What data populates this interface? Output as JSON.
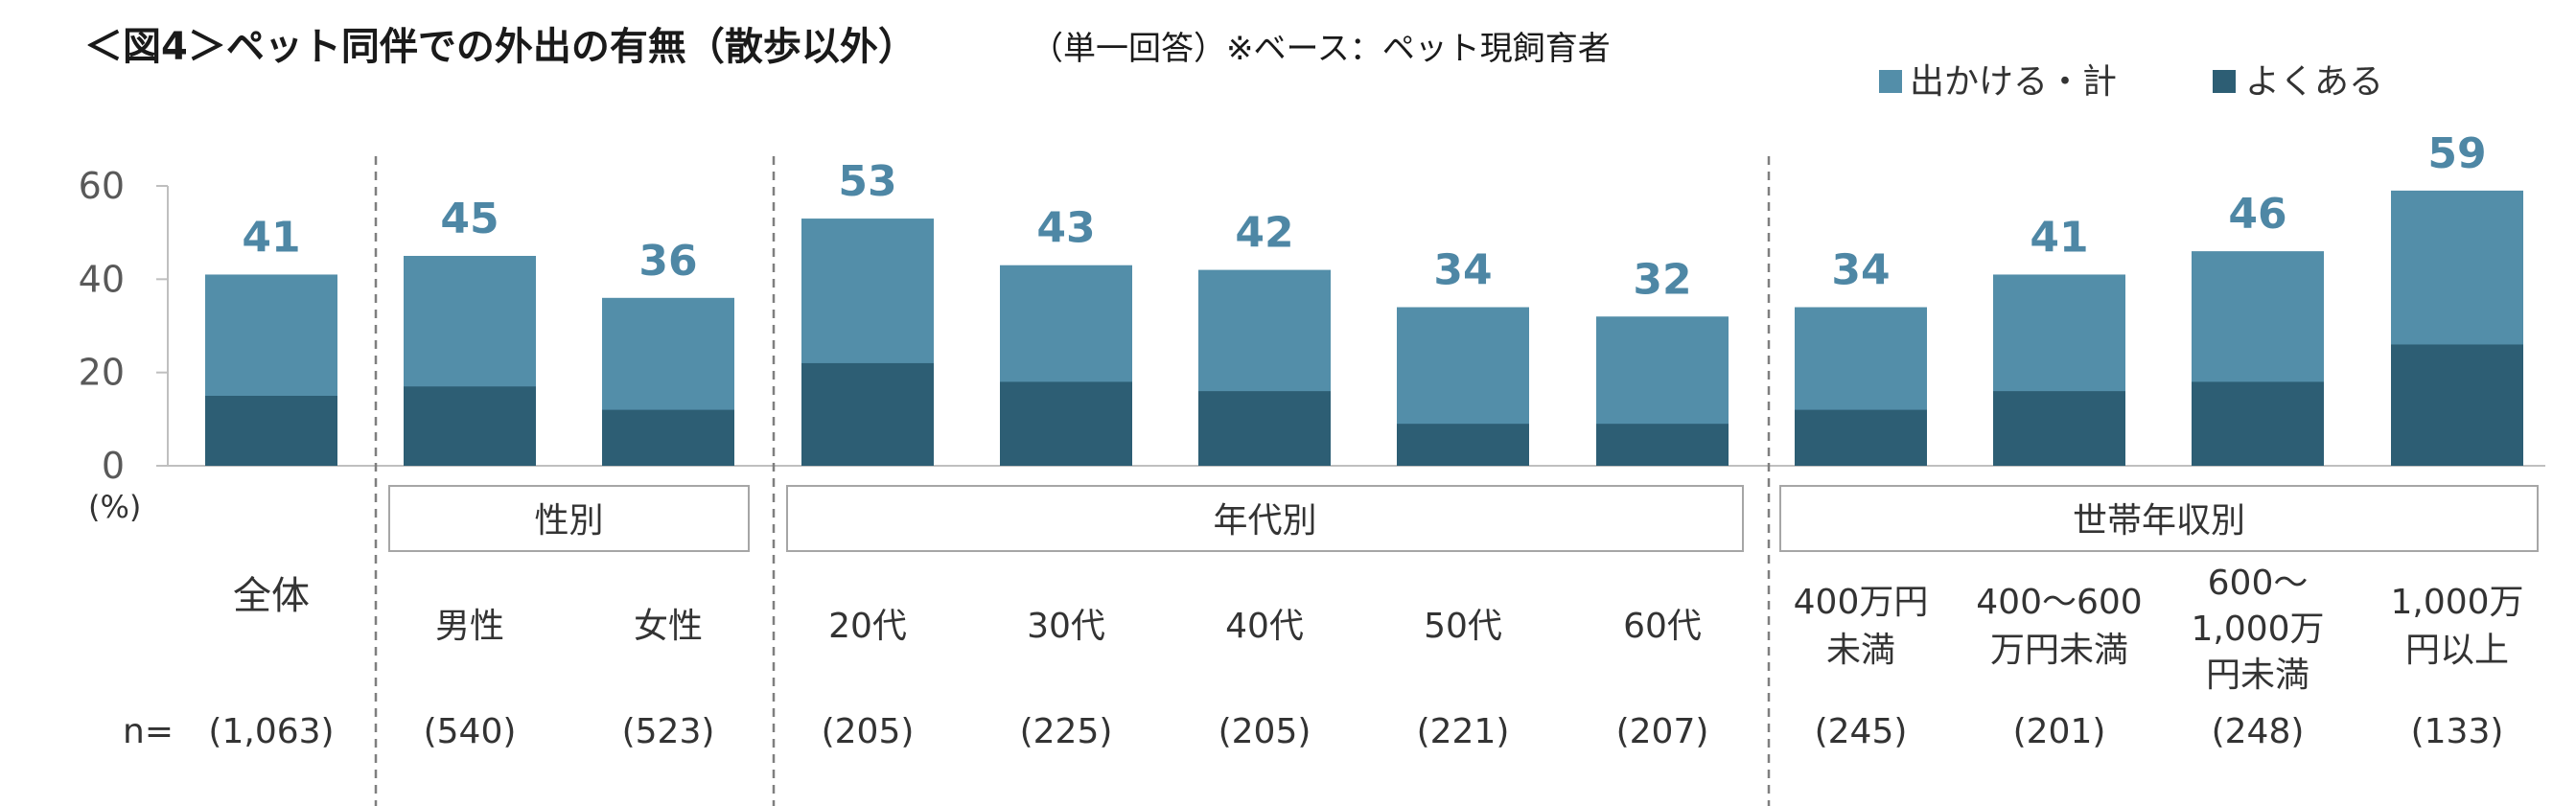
{
  "title": {
    "main": "＜図4＞ペット同伴での外出の有無（散歩以外）",
    "sub": "（単一回答）※ベース：ペット現飼育者"
  },
  "colors": {
    "total": "#538ea9",
    "often": "#2d5e74",
    "label": "#4e87a5",
    "axis": "#bfbfbf",
    "divider": "#7f7f7f"
  },
  "y_unit": "(%)",
  "n_prefix": "n=",
  "groups": [
    {
      "label": "性別",
      "start": 1,
      "end": 2
    },
    {
      "label": "年代別",
      "start": 3,
      "end": 7
    },
    {
      "label": "世帯年収別",
      "start": 8,
      "end": 11
    }
  ],
  "chart_data": {
    "type": "bar",
    "ylim": [
      0,
      60
    ],
    "yticks": [
      0,
      20,
      40,
      60
    ],
    "ylabel": "(%)",
    "legend_position": "top-right",
    "categories": [
      [
        "全体"
      ],
      [
        "男性"
      ],
      [
        "女性"
      ],
      [
        "20代"
      ],
      [
        "30代"
      ],
      [
        "40代"
      ],
      [
        "50代"
      ],
      [
        "60代"
      ],
      [
        "400万円",
        "未満"
      ],
      [
        "400～600",
        "万円未満"
      ],
      [
        "600～",
        "1,000万",
        "円未満"
      ],
      [
        "1,000万",
        "円以上"
      ]
    ],
    "n": [
      "(1,063)",
      "(540)",
      "(523)",
      "(205)",
      "(225)",
      "(205)",
      "(221)",
      "(207)",
      "(245)",
      "(201)",
      "(248)",
      "(133)"
    ],
    "series": [
      {
        "name": "出かける・計",
        "values": [
          41,
          45,
          36,
          53,
          43,
          42,
          34,
          32,
          34,
          41,
          46,
          59
        ]
      },
      {
        "name": "よくある",
        "values": [
          15,
          17,
          12,
          22,
          18,
          16,
          9,
          9,
          12,
          16,
          18,
          26
        ]
      }
    ],
    "data_labels": [
      "41",
      "45",
      "36",
      "53",
      "43",
      "42",
      "34",
      "32",
      "34",
      "41",
      "46",
      "59"
    ]
  }
}
